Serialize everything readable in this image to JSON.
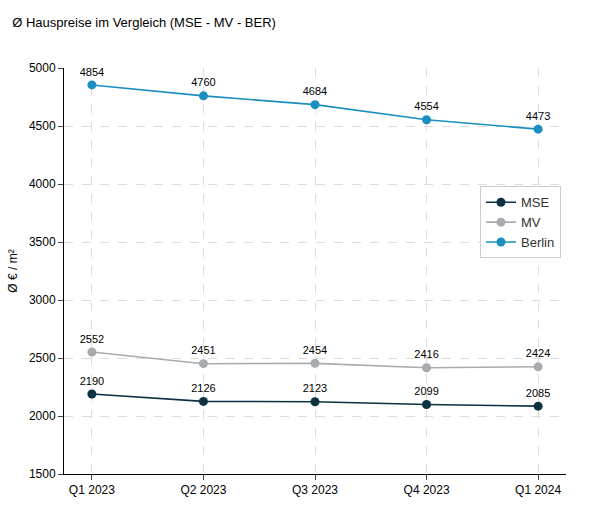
{
  "chart_data": {
    "type": "line",
    "title": "Ø Hauspreise im Vergleich (MSE - MV - BER)",
    "y_label": "Ø € / m²",
    "categories": [
      "Q1 2023",
      "Q2 2023",
      "Q3 2023",
      "Q4 2023",
      "Q1 2024"
    ],
    "series": [
      {
        "name": "MSE",
        "color": "#0b3142",
        "values": [
          2190,
          2126,
          2123,
          2099,
          2085
        ]
      },
      {
        "name": "MV",
        "color": "#a8abb0",
        "values": [
          2552,
          2451,
          2454,
          2416,
          2424
        ]
      },
      {
        "name": "Berlin",
        "color": "#1b8fc0",
        "values": [
          4854,
          4760,
          4684,
          4554,
          4473
        ]
      }
    ],
    "ylim": [
      1500,
      5000
    ],
    "yticks": [
      1500,
      2000,
      2500,
      3000,
      3500,
      4000,
      4500,
      5000
    ],
    "grid": true,
    "legend": "right",
    "data_labels": true,
    "marker": "circle"
  }
}
